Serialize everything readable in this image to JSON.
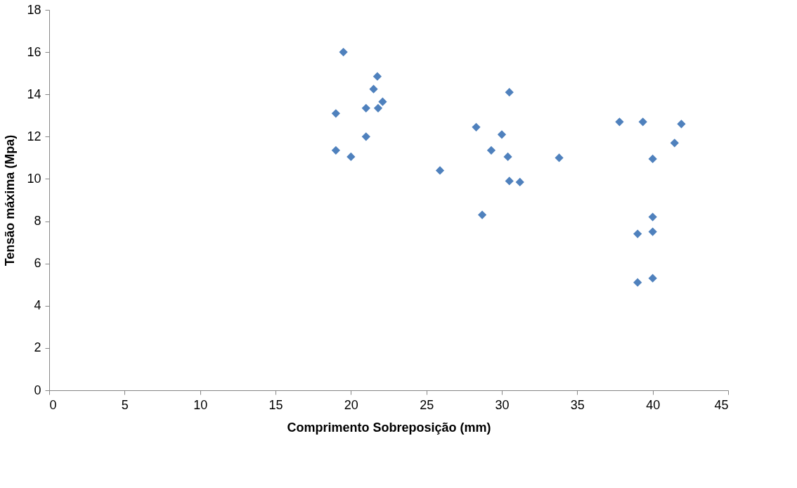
{
  "chart_data": {
    "type": "scatter",
    "xlabel": "Comprimento Sobreposição (mm)",
    "ylabel": "Tensão máxima (Mpa)",
    "x": [
      19.5,
      19.0,
      19.0,
      20.0,
      21.0,
      21.0,
      21.5,
      21.75,
      21.8,
      22.1,
      25.9,
      28.3,
      28.7,
      29.3,
      30.0,
      30.4,
      30.5,
      30.5,
      31.2,
      33.8,
      37.8,
      39.35,
      39.0,
      40.0,
      40.0,
      39.0,
      40.0,
      40.0,
      41.45,
      41.9
    ],
    "series": [
      {
        "color": "#4f81bd",
        "values": [
          16.0,
          13.1,
          11.35,
          11.05,
          12.0,
          13.35,
          14.25,
          14.85,
          13.35,
          13.65,
          10.4,
          12.45,
          8.3,
          11.35,
          12.1,
          11.05,
          14.1,
          9.9,
          9.85,
          11.0,
          12.7,
          12.7,
          7.4,
          7.5,
          8.2,
          5.1,
          5.3,
          10.95,
          11.7,
          12.6
        ]
      }
    ],
    "xlim": [
      0,
      45
    ],
    "xticks": [
      0,
      5,
      10,
      15,
      20,
      25,
      30,
      35,
      40,
      45
    ],
    "ylim": [
      0,
      18
    ],
    "yticks": [
      0,
      2,
      4,
      6,
      8,
      10,
      12,
      14,
      16,
      18
    ],
    "marker": "diamond",
    "grid": false
  }
}
